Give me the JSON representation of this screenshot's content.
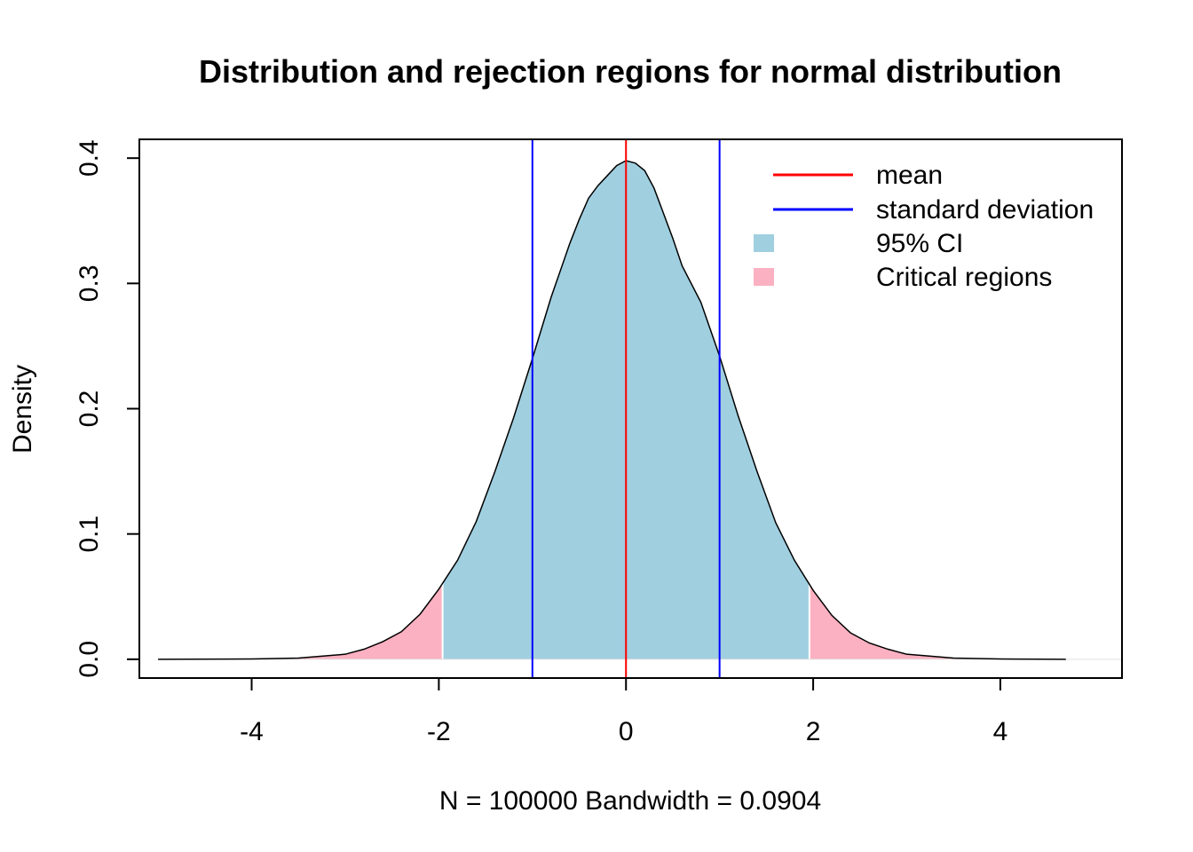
{
  "chart_data": {
    "type": "area",
    "title": "Distribution and rejection regions for normal distribution",
    "xlabel": "N = 100000   Bandwidth = 0.0904",
    "ylabel": "Density",
    "xlim": [
      -5.2,
      5.3
    ],
    "ylim": [
      -0.015,
      0.415
    ],
    "x_ticks": [
      -4,
      -2,
      0,
      2,
      4
    ],
    "x_tick_labels": [
      "-4",
      "-2",
      "0",
      "2",
      "4"
    ],
    "y_ticks": [
      0.0,
      0.1,
      0.2,
      0.3,
      0.4
    ],
    "y_tick_labels": [
      "0.0",
      "0.1",
      "0.2",
      "0.3",
      "0.4"
    ],
    "density_curve": {
      "x": [
        -5.0,
        -4.0,
        -3.5,
        -3.0,
        -2.8,
        -2.6,
        -2.4,
        -2.2,
        -2.0,
        -1.8,
        -1.6,
        -1.4,
        -1.2,
        -1.0,
        -0.8,
        -0.6,
        -0.5,
        -0.4,
        -0.3,
        -0.2,
        -0.1,
        0.0,
        0.1,
        0.2,
        0.3,
        0.4,
        0.5,
        0.6,
        0.8,
        1.0,
        1.2,
        1.4,
        1.6,
        1.8,
        2.0,
        2.2,
        2.4,
        2.6,
        2.8,
        3.0,
        3.5,
        4.0,
        4.7
      ],
      "y": [
        0.0,
        0.0002,
        0.0009,
        0.004,
        0.008,
        0.014,
        0.022,
        0.036,
        0.056,
        0.079,
        0.11,
        0.15,
        0.193,
        0.24,
        0.289,
        0.332,
        0.351,
        0.368,
        0.378,
        0.386,
        0.394,
        0.398,
        0.396,
        0.39,
        0.376,
        0.356,
        0.336,
        0.314,
        0.285,
        0.242,
        0.194,
        0.15,
        0.109,
        0.079,
        0.055,
        0.035,
        0.021,
        0.013,
        0.008,
        0.004,
        0.0009,
        0.0002,
        0.0
      ]
    },
    "ci_region": [
      -1.96,
      1.96
    ],
    "mean_line": 0.0,
    "sd_lines": [
      -1.0,
      1.0
    ],
    "legend_placement": "top-right",
    "legend": [
      {
        "label": "mean",
        "kind": "line",
        "color": "#ff0000"
      },
      {
        "label": "standard deviation",
        "kind": "line",
        "color": "#0000ff"
      },
      {
        "label": "95% CI",
        "kind": "box",
        "color": "#a0cfe0"
      },
      {
        "label": "Critical regions",
        "kind": "box",
        "color": "#fbb1c1"
      }
    ],
    "colors": {
      "ci_fill": "#a0cfe0",
      "critical_fill": "#fbb1c1",
      "mean_line": "#ff0000",
      "sd_line": "#0000ff",
      "curve": "#000000"
    },
    "grid": false
  }
}
